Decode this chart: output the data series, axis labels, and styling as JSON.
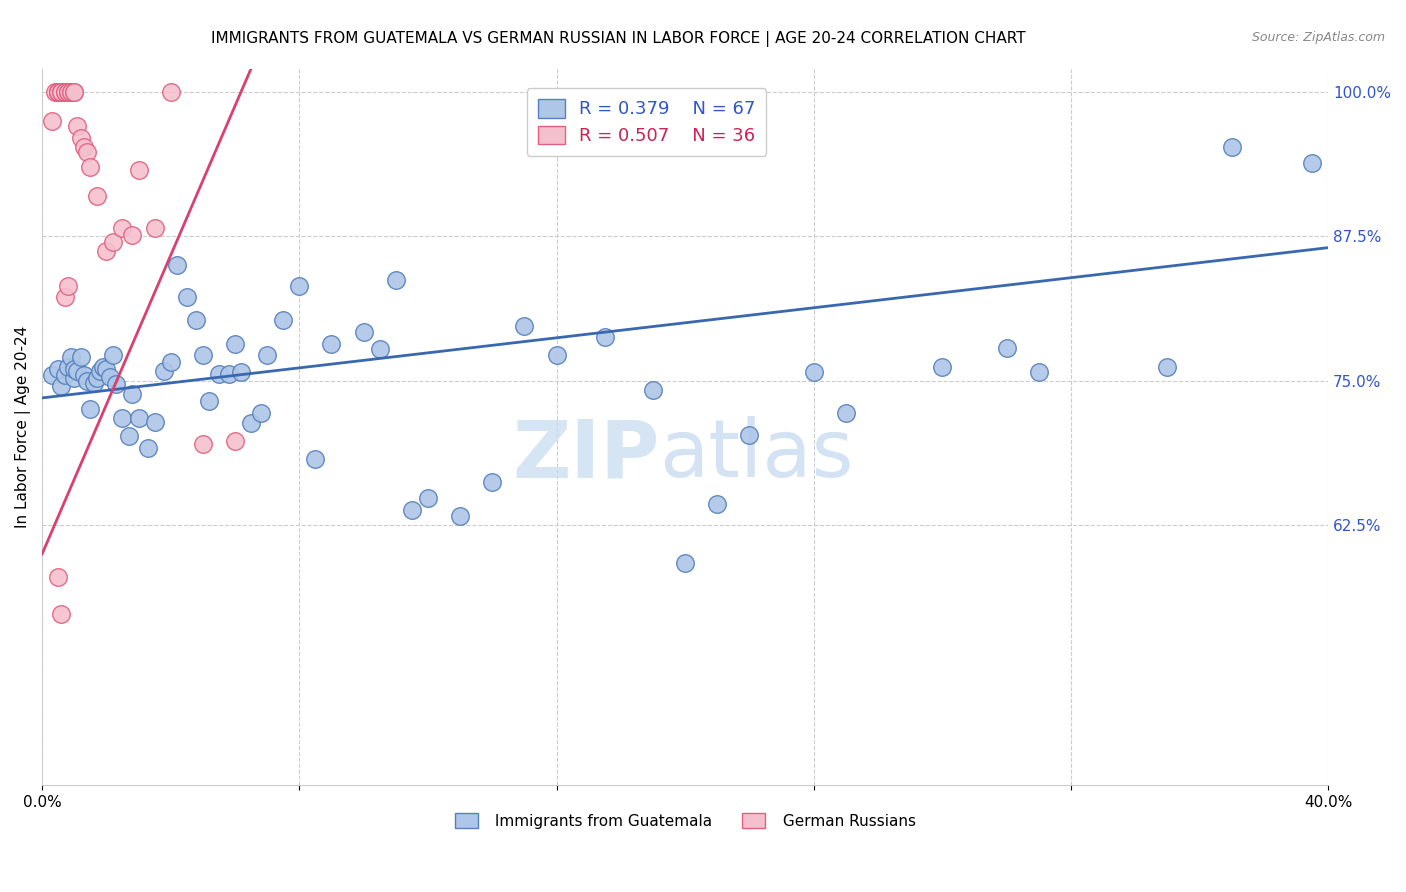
{
  "title": "IMMIGRANTS FROM GUATEMALA VS GERMAN RUSSIAN IN LABOR FORCE | AGE 20-24 CORRELATION CHART",
  "source": "Source: ZipAtlas.com",
  "ylabel": "In Labor Force | Age 20-24",
  "xlim": [
    0.0,
    0.4
  ],
  "ylim": [
    0.4,
    1.02
  ],
  "xtick_positions": [
    0.0,
    0.08,
    0.16,
    0.24,
    0.32,
    0.4
  ],
  "xtick_labels": [
    "0.0%",
    "",
    "",
    "",
    "",
    "40.0%"
  ],
  "ytick_vals_right": [
    1.0,
    0.875,
    0.75,
    0.625
  ],
  "ytick_labels_right": [
    "100.0%",
    "87.5%",
    "75.0%",
    "62.5%"
  ],
  "blue_R": 0.379,
  "blue_N": 67,
  "pink_R": 0.507,
  "pink_N": 36,
  "blue_color": "#aec6e8",
  "pink_color": "#f5c0ce",
  "blue_edge": "#5580bb",
  "pink_edge": "#e06080",
  "blue_line_color": "#3a68b0",
  "pink_line_color": "#d94070",
  "legend_R_color": "#3355cc",
  "legend_R2_color": "#cc2255",
  "blue_scatter_x": [
    0.003,
    0.005,
    0.006,
    0.007,
    0.008,
    0.009,
    0.01,
    0.01,
    0.011,
    0.012,
    0.013,
    0.014,
    0.015,
    0.016,
    0.017,
    0.018,
    0.019,
    0.02,
    0.021,
    0.022,
    0.023,
    0.025,
    0.027,
    0.028,
    0.03,
    0.033,
    0.035,
    0.038,
    0.04,
    0.042,
    0.045,
    0.048,
    0.05,
    0.052,
    0.055,
    0.058,
    0.06,
    0.062,
    0.065,
    0.068,
    0.07,
    0.075,
    0.08,
    0.085,
    0.09,
    0.1,
    0.105,
    0.11,
    0.115,
    0.12,
    0.13,
    0.14,
    0.15,
    0.16,
    0.175,
    0.19,
    0.2,
    0.21,
    0.22,
    0.24,
    0.25,
    0.28,
    0.3,
    0.31,
    0.35,
    0.37,
    0.395
  ],
  "blue_scatter_y": [
    0.755,
    0.76,
    0.745,
    0.755,
    0.762,
    0.77,
    0.752,
    0.76,
    0.758,
    0.77,
    0.755,
    0.75,
    0.725,
    0.748,
    0.752,
    0.758,
    0.762,
    0.76,
    0.753,
    0.772,
    0.747,
    0.718,
    0.702,
    0.738,
    0.718,
    0.692,
    0.714,
    0.758,
    0.766,
    0.85,
    0.822,
    0.802,
    0.772,
    0.732,
    0.756,
    0.756,
    0.782,
    0.757,
    0.713,
    0.722,
    0.772,
    0.802,
    0.832,
    0.682,
    0.782,
    0.792,
    0.777,
    0.837,
    0.638,
    0.648,
    0.633,
    0.662,
    0.797,
    0.772,
    0.788,
    0.742,
    0.592,
    0.643,
    0.703,
    0.757,
    0.722,
    0.762,
    0.778,
    0.757,
    0.762,
    0.952,
    0.938
  ],
  "pink_scatter_x": [
    0.003,
    0.004,
    0.005,
    0.005,
    0.005,
    0.005,
    0.006,
    0.006,
    0.006,
    0.007,
    0.007,
    0.008,
    0.008,
    0.009,
    0.009,
    0.01,
    0.01,
    0.011,
    0.012,
    0.013,
    0.014,
    0.015,
    0.017,
    0.02,
    0.022,
    0.025,
    0.028,
    0.03,
    0.035,
    0.04,
    0.005,
    0.006,
    0.007,
    0.008,
    0.05,
    0.06
  ],
  "pink_scatter_y": [
    0.975,
    1.0,
    1.0,
    1.0,
    1.0,
    1.0,
    1.0,
    1.0,
    1.0,
    1.0,
    1.0,
    1.0,
    1.0,
    1.0,
    1.0,
    1.0,
    1.0,
    0.97,
    0.96,
    0.952,
    0.948,
    0.935,
    0.91,
    0.862,
    0.87,
    0.882,
    0.876,
    0.932,
    0.882,
    1.0,
    0.58,
    0.548,
    0.822,
    0.832,
    0.695,
    0.698
  ],
  "blue_trend_x": [
    0.0,
    0.4
  ],
  "blue_trend_y": [
    0.735,
    0.865
  ],
  "pink_trend_x": [
    0.0,
    0.065
  ],
  "pink_trend_y": [
    0.6,
    1.02
  ]
}
